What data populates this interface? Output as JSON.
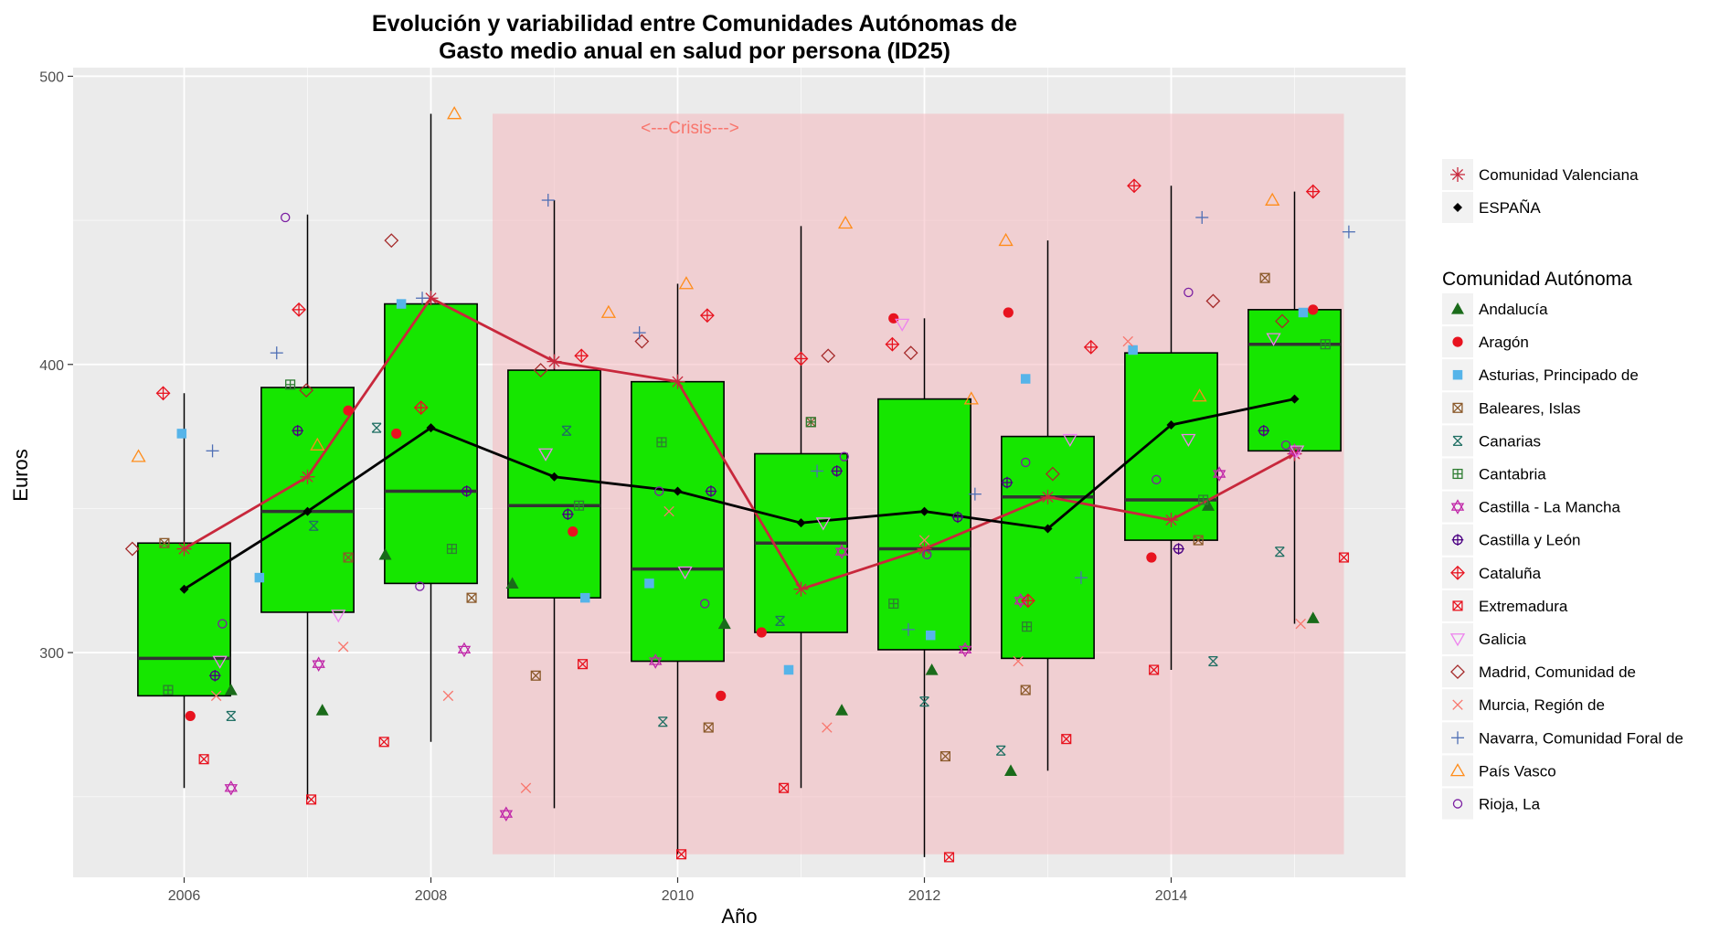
{
  "chart_data": {
    "type": "boxplot",
    "title_lines": [
      "Evolución y variabilidad entre Comunidades Autónomas de",
      "Gasto medio anual en salud por persona (ID25)"
    ],
    "xlabel": "Año",
    "ylabel": "Euros",
    "xlim": [
      2005.1,
      2015.9
    ],
    "ylim": [
      222,
      503
    ],
    "x_ticks": [
      2006,
      2008,
      2010,
      2012,
      2014
    ],
    "y_ticks": [
      300,
      400,
      500
    ],
    "grid": true,
    "annotation": {
      "text": "<---Crisis--->",
      "x": 2010.1,
      "y": 482,
      "color": "#f8766d",
      "shaded_region": {
        "x_range": [
          2008.5,
          2015.4
        ],
        "y_range": [
          230,
          487
        ],
        "color": "#f4b8bd"
      }
    },
    "boxplots": [
      {
        "x": 2006,
        "q1": 285,
        "median": 298,
        "q3": 338,
        "whisker_low": 253,
        "whisker_high": 390
      },
      {
        "x": 2007,
        "q1": 314,
        "median": 349,
        "q3": 392,
        "whisker_low": 249,
        "whisker_high": 452
      },
      {
        "x": 2008,
        "q1": 324,
        "median": 356,
        "q3": 421,
        "whisker_low": 269,
        "whisker_high": 487
      },
      {
        "x": 2009,
        "q1": 319,
        "median": 351,
        "q3": 398,
        "whisker_low": 246,
        "whisker_high": 457
      },
      {
        "x": 2010,
        "q1": 297,
        "median": 329,
        "q3": 394,
        "whisker_low": 230,
        "whisker_high": 428
      },
      {
        "x": 2011,
        "q1": 307,
        "median": 338,
        "q3": 369,
        "whisker_low": 253,
        "whisker_high": 448
      },
      {
        "x": 2012,
        "q1": 301,
        "median": 336,
        "q3": 388,
        "whisker_low": 229,
        "whisker_high": 416
      },
      {
        "x": 2013,
        "q1": 298,
        "median": 354,
        "q3": 375,
        "whisker_low": 259,
        "whisker_high": 443
      },
      {
        "x": 2014,
        "q1": 339,
        "median": 353,
        "q3": 404,
        "whisker_low": 294,
        "whisker_high": 462
      },
      {
        "x": 2015,
        "q1": 370,
        "median": 407,
        "q3": 419,
        "whisker_low": 310,
        "whisker_high": 460
      }
    ],
    "box_fill": "#16e600",
    "lines": [
      {
        "name": "Comunidad Valenciana",
        "color": "#c8283c",
        "shape": "asterisk",
        "x": [
          2006,
          2007,
          2008,
          2009,
          2010,
          2011,
          2012,
          2013,
          2014,
          2015
        ],
        "y": [
          336,
          361,
          423,
          401,
          394,
          322,
          336,
          354,
          346,
          369
        ]
      },
      {
        "name": "ESPAÑA",
        "color": "#000000",
        "shape": "diamond",
        "x": [
          2006,
          2007,
          2008,
          2009,
          2010,
          2011,
          2012,
          2013,
          2014,
          2015
        ],
        "y": [
          322,
          349,
          378,
          361,
          356,
          345,
          349,
          343,
          379,
          388
        ]
      }
    ],
    "legend_title": "Comunidad Autónoma",
    "series": [
      {
        "name": "Andalucía",
        "color": "#1a6b1a",
        "shape": "triangle-filled",
        "points": [
          [
            2006.38,
            287
          ],
          [
            2007.12,
            280
          ],
          [
            2007.63,
            334
          ],
          [
            2008.66,
            324
          ],
          [
            2010.38,
            310
          ],
          [
            2011.33,
            280
          ],
          [
            2012.06,
            294
          ],
          [
            2012.7,
            259
          ],
          [
            2014.3,
            351
          ],
          [
            2015.15,
            312
          ]
        ]
      },
      {
        "name": "Aragón",
        "color": "#e8131f",
        "shape": "circle-filled",
        "points": [
          [
            2006.05,
            278
          ],
          [
            2007.33,
            384
          ],
          [
            2007.72,
            376
          ],
          [
            2009.15,
            342
          ],
          [
            2010.35,
            285
          ],
          [
            2010.68,
            307
          ],
          [
            2011.75,
            416
          ],
          [
            2012.68,
            418
          ],
          [
            2013.84,
            333
          ],
          [
            2015.15,
            419
          ]
        ]
      },
      {
        "name": "Asturias, Principado de",
        "color": "#56b4e9",
        "shape": "square-filled",
        "points": [
          [
            2005.98,
            376
          ],
          [
            2006.61,
            326
          ],
          [
            2007.76,
            421
          ],
          [
            2009.25,
            319
          ],
          [
            2009.77,
            324
          ],
          [
            2010.9,
            294
          ],
          [
            2012.05,
            306
          ],
          [
            2012.82,
            395
          ],
          [
            2013.69,
            405
          ],
          [
            2015.07,
            418
          ]
        ]
      },
      {
        "name": "Baleares, Islas",
        "color": "#8b5a2b",
        "shape": "square-x",
        "points": [
          [
            2005.84,
            338
          ],
          [
            2007.33,
            333
          ],
          [
            2008.33,
            319
          ],
          [
            2008.85,
            292
          ],
          [
            2010.25,
            274
          ],
          [
            2011.08,
            380
          ],
          [
            2012.17,
            264
          ],
          [
            2012.82,
            287
          ],
          [
            2014.22,
            339
          ],
          [
            2014.76,
            430
          ]
        ]
      },
      {
        "name": "Canarias",
        "color": "#1f6f63",
        "shape": "x-box",
        "points": [
          [
            2006.38,
            278
          ],
          [
            2007.05,
            344
          ],
          [
            2007.56,
            378
          ],
          [
            2009.1,
            377
          ],
          [
            2009.88,
            276
          ],
          [
            2010.83,
            311
          ],
          [
            2012.0,
            283
          ],
          [
            2012.62,
            266
          ],
          [
            2014.34,
            297
          ],
          [
            2014.88,
            335
          ]
        ]
      },
      {
        "name": "Cantabria",
        "color": "#2e7d32",
        "shape": "square-plus",
        "points": [
          [
            2005.87,
            287
          ],
          [
            2006.86,
            393
          ],
          [
            2008.17,
            336
          ],
          [
            2009.2,
            351
          ],
          [
            2009.87,
            373
          ],
          [
            2011.08,
            380
          ],
          [
            2011.75,
            317
          ],
          [
            2012.83,
            309
          ],
          [
            2014.26,
            353
          ],
          [
            2015.25,
            407
          ]
        ]
      },
      {
        "name": "Castilla - La Mancha",
        "color": "#c026a8",
        "shape": "star-of-david",
        "points": [
          [
            2006.38,
            253
          ],
          [
            2007.09,
            296
          ],
          [
            2008.27,
            301
          ],
          [
            2008.61,
            244
          ],
          [
            2009.82,
            297
          ],
          [
            2011.33,
            335
          ],
          [
            2012.33,
            301
          ],
          [
            2012.78,
            318
          ],
          [
            2014.39,
            362
          ],
          [
            2015.0,
            370
          ]
        ]
      },
      {
        "name": "Castilla y León",
        "color": "#4b0082",
        "shape": "circle-plus",
        "points": [
          [
            2006.25,
            292
          ],
          [
            2006.92,
            377
          ],
          [
            2008.29,
            356
          ],
          [
            2009.11,
            348
          ],
          [
            2010.27,
            356
          ],
          [
            2011.29,
            363
          ],
          [
            2012.27,
            347
          ],
          [
            2012.67,
            359
          ],
          [
            2014.06,
            336
          ],
          [
            2014.75,
            377
          ]
        ]
      },
      {
        "name": "Cataluña",
        "color": "#e8131f",
        "shape": "diamond-plus",
        "points": [
          [
            2005.83,
            390
          ],
          [
            2006.93,
            419
          ],
          [
            2007.92,
            385
          ],
          [
            2009.22,
            403
          ],
          [
            2010.24,
            417
          ],
          [
            2011.0,
            402
          ],
          [
            2011.74,
            407
          ],
          [
            2012.84,
            318
          ],
          [
            2013.35,
            406
          ],
          [
            2013.7,
            462
          ],
          [
            2015.15,
            460
          ]
        ]
      },
      {
        "name": "Extremadura",
        "color": "#e8131f",
        "shape": "square-x-red",
        "points": [
          [
            2006.16,
            263
          ],
          [
            2007.03,
            249
          ],
          [
            2007.62,
            269
          ],
          [
            2009.23,
            296
          ],
          [
            2010.03,
            230
          ],
          [
            2010.86,
            253
          ],
          [
            2012.2,
            229
          ],
          [
            2013.15,
            270
          ],
          [
            2013.86,
            294
          ],
          [
            2015.4,
            333
          ]
        ]
      },
      {
        "name": "Galicia",
        "color": "#ee82ee",
        "shape": "triangle-down",
        "points": [
          [
            2006.29,
            297
          ],
          [
            2007.25,
            313
          ],
          [
            2008.93,
            369
          ],
          [
            2010.06,
            328
          ],
          [
            2011.18,
            345
          ],
          [
            2011.82,
            414
          ],
          [
            2013.18,
            374
          ],
          [
            2014.14,
            374
          ],
          [
            2014.83,
            409
          ],
          [
            2015.02,
            370
          ]
        ]
      },
      {
        "name": "Madrid, Comunidad de",
        "color": "#a52a2a",
        "shape": "diamond",
        "points": [
          [
            2005.58,
            336
          ],
          [
            2006.99,
            391
          ],
          [
            2007.68,
            443
          ],
          [
            2008.89,
            398
          ],
          [
            2009.71,
            408
          ],
          [
            2011.22,
            403
          ],
          [
            2011.89,
            404
          ],
          [
            2013.04,
            362
          ],
          [
            2014.34,
            422
          ],
          [
            2014.9,
            415
          ]
        ]
      },
      {
        "name": "Murcia, Región de",
        "color": "#f8766d",
        "shape": "x",
        "points": [
          [
            2006.26,
            285
          ],
          [
            2007.29,
            302
          ],
          [
            2008.14,
            285
          ],
          [
            2008.77,
            253
          ],
          [
            2009.93,
            349
          ],
          [
            2011.21,
            274
          ],
          [
            2012.0,
            339
          ],
          [
            2012.76,
            297
          ],
          [
            2013.65,
            408
          ],
          [
            2015.05,
            310
          ]
        ]
      },
      {
        "name": "Navarra, Comunidad Foral de",
        "color": "#4f6fb5",
        "shape": "plus",
        "points": [
          [
            2006.23,
            370
          ],
          [
            2006.75,
            404
          ],
          [
            2007.93,
            423
          ],
          [
            2008.95,
            457
          ],
          [
            2009.69,
            411
          ],
          [
            2011.13,
            363
          ],
          [
            2011.87,
            308
          ],
          [
            2012.41,
            355
          ],
          [
            2013.27,
            326
          ],
          [
            2014.25,
            451
          ],
          [
            2015.44,
            446
          ]
        ]
      },
      {
        "name": "País Vasco",
        "color": "#ff8c1a",
        "shape": "triangle-open",
        "points": [
          [
            2005.63,
            368
          ],
          [
            2007.08,
            372
          ],
          [
            2008.19,
            487
          ],
          [
            2009.44,
            418
          ],
          [
            2010.07,
            428
          ],
          [
            2011.36,
            449
          ],
          [
            2012.38,
            388
          ],
          [
            2012.66,
            443
          ],
          [
            2014.23,
            389
          ],
          [
            2014.82,
            457
          ]
        ]
      },
      {
        "name": "Rioja, La",
        "color": "#7b1fa2",
        "shape": "circle-open",
        "points": [
          [
            2006.31,
            310
          ],
          [
            2006.82,
            451
          ],
          [
            2007.91,
            323
          ],
          [
            2009.85,
            356
          ],
          [
            2010.22,
            317
          ],
          [
            2011.35,
            368
          ],
          [
            2012.02,
            334
          ],
          [
            2012.82,
            366
          ],
          [
            2013.88,
            360
          ],
          [
            2014.14,
            425
          ],
          [
            2014.93,
            372
          ]
        ]
      }
    ]
  }
}
